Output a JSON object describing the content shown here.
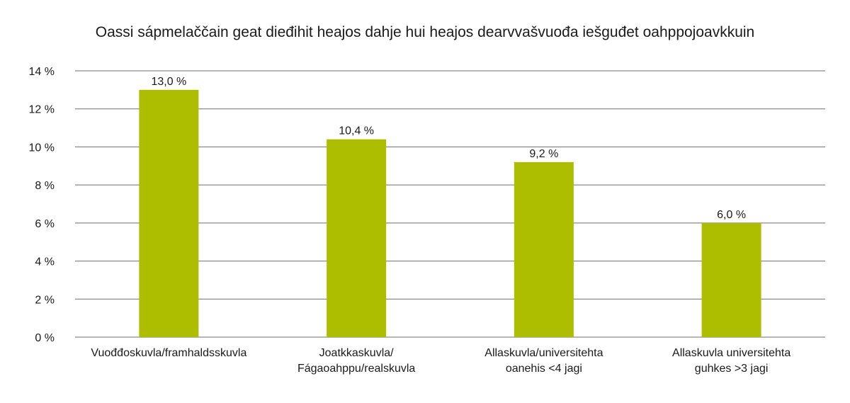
{
  "chart_data": {
    "type": "bar",
    "title": "Oassi sápmelaččain geat dieđihit heajos dahje hui heajos dearvvašvuođa iešguđet oahppojoavkkuin",
    "xlabel": "",
    "ylabel": "",
    "categories": [
      [
        "Vuođđoskuvla/framhaldsskuvla"
      ],
      [
        "Joatkkaskuvla/",
        "Fágaoahppu/realskuvla"
      ],
      [
        "Allaskuvla/universitehta",
        "oanehis <4 jagi"
      ],
      [
        "Allaskuvla universitehta",
        "guhkes >3 jagi"
      ]
    ],
    "values": [
      13.0,
      10.4,
      9.2,
      6.0
    ],
    "value_labels": [
      "13,0 %",
      "10,4 %",
      "9,2 %",
      "6,0 %"
    ],
    "ylim": [
      0,
      14
    ],
    "y_ticks": [
      {
        "value": 0,
        "label": "0 %"
      },
      {
        "value": 2,
        "label": "2 %"
      },
      {
        "value": 4,
        "label": "4 %"
      },
      {
        "value": 6,
        "label": "6 %"
      },
      {
        "value": 8,
        "label": "8 %"
      },
      {
        "value": 10,
        "label": "10 %"
      },
      {
        "value": 12,
        "label": "12 %"
      },
      {
        "value": 14,
        "label": "14 %"
      }
    ],
    "grid": true,
    "legend": "none",
    "colors": {
      "bar": "#adbe00",
      "grid": "#6e6e6e",
      "text": "#1a1a1a"
    }
  }
}
